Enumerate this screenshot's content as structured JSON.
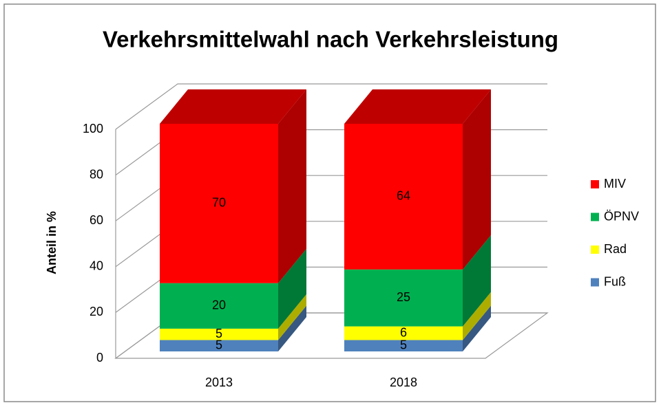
{
  "chart_data": {
    "type": "bar3d_stacked",
    "title": "Verkehrsmittelwahl nach Verkehrsleistung",
    "y_label": "Anteil in %",
    "categories": [
      "2013",
      "2018"
    ],
    "series": [
      {
        "name": "Fuß",
        "color": "#4f81bd",
        "values": [
          5,
          5
        ]
      },
      {
        "name": "Rad",
        "color": "#ffff00",
        "values": [
          5,
          6
        ]
      },
      {
        "name": "ÖPNV",
        "color": "#00b050",
        "values": [
          20,
          25
        ]
      },
      {
        "name": "MIV",
        "color": "#ff0000",
        "values": [
          70,
          64
        ]
      }
    ],
    "ylim": [
      0,
      100
    ],
    "yticks": [
      0,
      20,
      40,
      60,
      80,
      100
    ],
    "grid": true,
    "legend": "right"
  }
}
